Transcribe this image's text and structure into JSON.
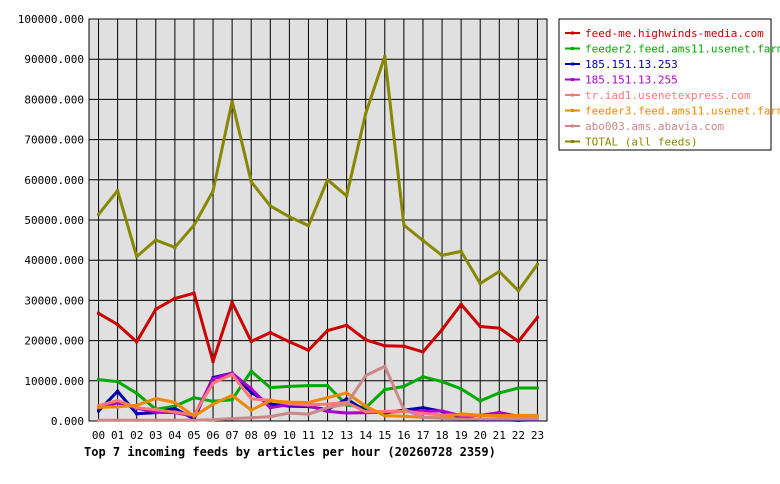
{
  "chart_data": {
    "type": "line",
    "title": "Top 7 incoming feeds by articles per hour (20260728 2359)",
    "xlabel": "",
    "ylabel": "",
    "categories": [
      "00",
      "01",
      "02",
      "03",
      "04",
      "05",
      "06",
      "07",
      "08",
      "09",
      "10",
      "11",
      "12",
      "13",
      "14",
      "15",
      "16",
      "17",
      "18",
      "19",
      "20",
      "21",
      "22",
      "23"
    ],
    "ylim": [
      0,
      100000
    ],
    "yticks": [
      0,
      10000,
      20000,
      30000,
      40000,
      50000,
      60000,
      70000,
      80000,
      90000,
      100000
    ],
    "ytick_labels": [
      "0.000",
      "10000.000",
      "20000.000",
      "30000.000",
      "40000.000",
      "50000.000",
      "60000.000",
      "70000.000",
      "80000.000",
      "90000.000",
      "100000.000"
    ],
    "grid": true,
    "legend_placement": "right",
    "plot_background": "#e0e0e0",
    "series": [
      {
        "name": "feed-me.highwinds-media.com",
        "color": "#cc0000",
        "values": [
          26800,
          24000,
          19700,
          27800,
          30500,
          31800,
          14800,
          29500,
          19800,
          22000,
          19700,
          17600,
          22500,
          23800,
          20200,
          18700,
          18600,
          17200,
          22700,
          29000,
          23500,
          23100,
          19800,
          25800
        ]
      },
      {
        "name": "feeder2.feed.ams11.usenet.farm",
        "color": "#00aa00",
        "values": [
          10300,
          9800,
          6900,
          2900,
          3700,
          5800,
          4900,
          5300,
          12400,
          8300,
          8600,
          8800,
          8800,
          4000,
          3300,
          7800,
          8600,
          11000,
          9800,
          8000,
          5000,
          7000,
          8200,
          8200
        ]
      },
      {
        "name": "185.151.13.253",
        "color": "#0000aa",
        "values": [
          2500,
          7400,
          1800,
          2100,
          3100,
          500,
          10800,
          11900,
          7100,
          4200,
          3700,
          3600,
          2800,
          5500,
          2500,
          2000,
          2700,
          3300,
          2400,
          800,
          400,
          300,
          200,
          300
        ]
      },
      {
        "name": "185.151.13.255",
        "color": "#aa00cc",
        "values": [
          3200,
          4500,
          3200,
          2200,
          2100,
          1200,
          10500,
          11900,
          8000,
          3300,
          4100,
          3800,
          2400,
          2000,
          2100,
          2200,
          2400,
          2400,
          2500,
          1300,
          1400,
          2100,
          1200,
          900
        ]
      },
      {
        "name": "tr.iad1.usenetexpress.com",
        "color": "#ff7777",
        "values": [
          3800,
          5100,
          3300,
          2800,
          2200,
          1500,
          9400,
          11600,
          5500,
          5200,
          4300,
          4000,
          4200,
          4600,
          2300,
          2400,
          2400,
          1900,
          1500,
          1500,
          1400,
          1300,
          1200,
          1100
        ]
      },
      {
        "name": "feeder3.feed.ams11.usenet.farm",
        "color": "#ee8800",
        "values": [
          3400,
          3500,
          3900,
          5600,
          4600,
          1200,
          4200,
          6400,
          2700,
          5000,
          4700,
          4600,
          5800,
          7000,
          3700,
          1300,
          1200,
          900,
          800,
          1800,
          1400,
          1300,
          1400,
          1400
        ]
      },
      {
        "name": "abo003.ams.abavia.com",
        "color": "#cc8888",
        "values": [
          200,
          200,
          200,
          200,
          200,
          200,
          300,
          600,
          800,
          1100,
          2000,
          1700,
          3300,
          4200,
          11300,
          13600,
          2900,
          900,
          700,
          500,
          500,
          500,
          500,
          500
        ]
      },
      {
        "name": "TOTAL (all feeds)",
        "color": "#888800",
        "values": [
          51400,
          57300,
          40900,
          45000,
          43200,
          48700,
          57200,
          79500,
          59500,
          53500,
          50800,
          48600,
          60000,
          56000,
          76500,
          90700,
          48700,
          44900,
          41200,
          42200,
          34200,
          37200,
          32400,
          39000
        ]
      }
    ]
  }
}
